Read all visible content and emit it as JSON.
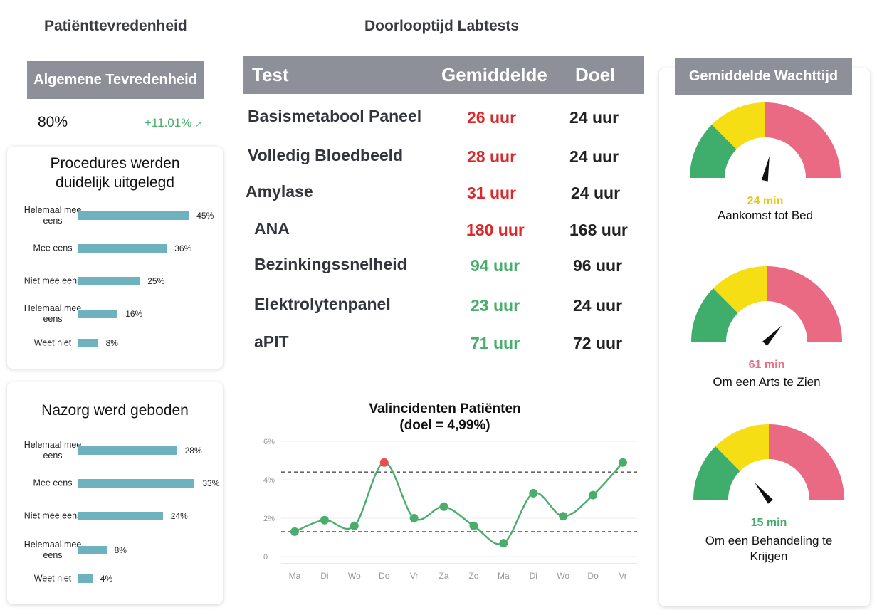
{
  "satisfaction": {
    "title": "Patiënttevredenheid",
    "overall_label": "Algemene Tevredenheid",
    "overall_value": "80%",
    "overall_change": "+11.01%",
    "trend_icon": "trend-up-icon",
    "cards": [
      {
        "title_line1": "Procedures werden",
        "title_line2": "duidelijk uitgelegd",
        "rows": [
          {
            "label": "Helemaal mee eens",
            "value": 45,
            "text": "45%"
          },
          {
            "label": "Mee eens",
            "value": 36,
            "text": "36%"
          },
          {
            "label": "Niet mee eens",
            "value": 25,
            "text": "25%"
          },
          {
            "label": "Helemaal mee eens",
            "value": 16,
            "text": "16%"
          },
          {
            "label": "Weet niet",
            "value": 8,
            "text": "8%"
          }
        ]
      },
      {
        "title_line1": "Nazorg werd geboden",
        "title_line2": "",
        "rows": [
          {
            "label": "Helemaal mee eens",
            "value": 28,
            "text": "28%"
          },
          {
            "label": "Mee eens",
            "value": 33,
            "text": "33%"
          },
          {
            "label": "Niet mee eens",
            "value": 24,
            "text": "24%"
          },
          {
            "label": "Helemaal mee eens",
            "value": 8,
            "text": "8%"
          },
          {
            "label": "Weet niet",
            "value": 4,
            "text": "4%"
          }
        ]
      }
    ]
  },
  "labtests": {
    "title": "Doorlooptijd Labtests",
    "headers": {
      "test": "Test",
      "avg": "Gemiddelde",
      "goal": "Doel"
    },
    "rows": [
      {
        "test": "Basismetabool Paneel",
        "avg": "26 uur",
        "goal": "24 uur",
        "status": "red"
      },
      {
        "test": "Volledig Bloedbeeld",
        "avg": "28 uur",
        "goal": "24 uur",
        "status": "red"
      },
      {
        "test": "Amylase",
        "avg": "31 uur",
        "goal": "24 uur",
        "status": "red"
      },
      {
        "test": "ANA",
        "avg": "180 uur",
        "goal": "168 uur",
        "status": "red"
      },
      {
        "test": "Bezinkingssnelheid",
        "avg": "94 uur",
        "goal": "96 uur",
        "status": "green"
      },
      {
        "test": "Elektrolytenpanel",
        "avg": "23 uur",
        "goal": "24 uur",
        "status": "green"
      },
      {
        "test": "aPIT",
        "avg": "71 uur",
        "goal": "72 uur",
        "status": "green"
      }
    ]
  },
  "chart_data": {
    "type": "line",
    "title_line1": "Valincidenten Patiënten",
    "title_line2": "(doel = 4,99%)",
    "categories": [
      "Ma",
      "Di",
      "Wo",
      "Do",
      "Vr",
      "Za",
      "Zo",
      "Ma",
      "Di",
      "Wo",
      "Do",
      "Vr"
    ],
    "x_ticks": [
      "Ma",
      "Di",
      "Wo",
      "Do",
      "Vr",
      "Za",
      "Zo",
      "Ma",
      "Di",
      "Wo",
      "Do",
      "Vr"
    ],
    "y_ticks": [
      "0",
      "2%",
      "4%",
      "6%"
    ],
    "ylim": [
      0,
      6
    ],
    "series": [
      {
        "values": [
          1.3,
          1.9,
          1.6,
          4.9,
          2.0,
          2.6,
          1.6,
          0.7,
          3.3,
          2.1,
          3.2,
          4.9
        ]
      }
    ],
    "reference_lines": [
      4.4,
      1.3
    ],
    "highlight_index": 3,
    "colors": {
      "line": "#49ad6b",
      "highlight": "#ee4b4b",
      "reference": "#666666"
    }
  },
  "waits": {
    "title": "Gemiddelde Wachttijd",
    "gauges": [
      {
        "value_text": "24 min",
        "label": "Aankomst tot Bed",
        "color": "#e8c619",
        "needle_fraction": 0.56
      },
      {
        "value_text": "61 min",
        "label": "Om een Arts te Zien",
        "color": "#e8728a",
        "needle_fraction": 0.74
      },
      {
        "value_text": "15 min",
        "label": "Om een Behandeling te Krijgen",
        "color": "#49ad6b",
        "needle_fraction": 0.28
      }
    ],
    "gauge_colors": {
      "green": "#3fae6c",
      "yellow": "#f6de14",
      "red": "#e96a82"
    }
  }
}
